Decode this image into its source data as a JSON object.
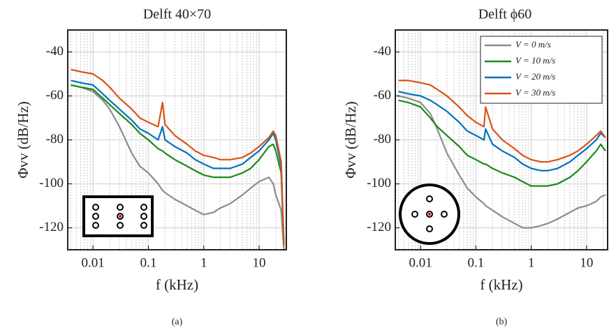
{
  "chart_data": [
    {
      "type": "line",
      "title": "Delft 40×70",
      "caption": "(a)",
      "x_label": "f (kHz)",
      "y_label": "Φvv (dB/Hz)",
      "x_scale": "log",
      "grid": true,
      "minor_grid": true,
      "xlim": [
        0.0035,
        31
      ],
      "ylim": [
        -130,
        -30
      ],
      "xticks": [
        0.01,
        0.1,
        1,
        10
      ],
      "yticks": [
        -40,
        -60,
        -80,
        -100,
        -120
      ],
      "x": [
        0.004,
        0.006,
        0.01,
        0.015,
        0.02,
        0.03,
        0.05,
        0.07,
        0.1,
        0.15,
        0.18,
        0.2,
        0.3,
        0.5,
        0.7,
        1,
        1.5,
        2,
        3,
        5,
        7,
        10,
        15,
        18,
        20,
        25,
        28
      ],
      "series": [
        {
          "name": "V = 0 m/s",
          "color": "#8c8c8c",
          "values": [
            -55,
            -56,
            -58,
            -62,
            -66,
            -74,
            -86,
            -92,
            -95,
            -100,
            -103,
            -104,
            -107,
            -110,
            -112,
            -114,
            -113,
            -111,
            -109,
            -105,
            -102,
            -99,
            -97,
            -100,
            -105,
            -112,
            -130
          ]
        },
        {
          "name": "V = 10 m/s",
          "color": "#1a8a1a",
          "values": [
            -55,
            -56,
            -57,
            -61,
            -64,
            -68,
            -73,
            -77,
            -80,
            -84,
            -85,
            -86,
            -89,
            -92,
            -94,
            -96,
            -97,
            -97,
            -97,
            -95,
            -93,
            -89,
            -83,
            -82,
            -85,
            -95,
            -128
          ]
        },
        {
          "name": "V = 20 m/s",
          "color": "#0072bd",
          "values": [
            -53,
            -54,
            -55,
            -59,
            -62,
            -66,
            -71,
            -75,
            -77,
            -80,
            -74,
            -80,
            -83,
            -86,
            -89,
            -91,
            -93,
            -93,
            -93,
            -91,
            -88,
            -85,
            -80,
            -77,
            -80,
            -92,
            -128
          ]
        },
        {
          "name": "V = 30 m/s",
          "color": "#d95319",
          "values": [
            -48,
            -49,
            -50,
            -53,
            -56,
            -61,
            -66,
            -70,
            -72,
            -74,
            -63,
            -73,
            -78,
            -82,
            -85,
            -87,
            -88,
            -89,
            -89,
            -88,
            -86,
            -83,
            -79,
            -76,
            -78,
            -90,
            -128
          ]
        }
      ]
    },
    {
      "type": "line",
      "title": "Delft ϕ60",
      "caption": "(b)",
      "x_label": "f (kHz)",
      "y_label": "Φvv (dB/Hz)",
      "x_scale": "log",
      "grid": true,
      "minor_grid": true,
      "legend": "upper right",
      "xlim": [
        0.0035,
        24
      ],
      "ylim": [
        -130,
        -30
      ],
      "xticks": [
        0.01,
        0.1,
        1,
        10
      ],
      "yticks": [
        -40,
        -60,
        -80,
        -100,
        -120
      ],
      "x": [
        0.004,
        0.006,
        0.01,
        0.015,
        0.02,
        0.03,
        0.05,
        0.07,
        0.1,
        0.14,
        0.15,
        0.2,
        0.3,
        0.5,
        0.7,
        1,
        1.5,
        2,
        3,
        5,
        7,
        10,
        15,
        18,
        22
      ],
      "series": [
        {
          "name": "V = 0 m/s",
          "color": "#8c8c8c",
          "values": [
            -60,
            -61,
            -63,
            -68,
            -75,
            -86,
            -96,
            -102,
            -106,
            -109,
            -110,
            -112,
            -115,
            -118,
            -120,
            -120,
            -119,
            -118,
            -116,
            -113,
            -111,
            -110,
            -108,
            -106,
            -105
          ]
        },
        {
          "name": "V = 10 m/s",
          "color": "#1a8a1a",
          "values": [
            -62,
            -63,
            -65,
            -70,
            -74,
            -78,
            -83,
            -87,
            -89,
            -91,
            -91,
            -93,
            -95,
            -97,
            -99,
            -101,
            -101,
            -101,
            -100,
            -97,
            -94,
            -90,
            -85,
            -82,
            -85
          ]
        },
        {
          "name": "V = 20 m/s",
          "color": "#0072bd",
          "values": [
            -58,
            -59,
            -60,
            -62,
            -64,
            -67,
            -72,
            -76,
            -78,
            -80,
            -75,
            -82,
            -85,
            -88,
            -91,
            -93,
            -94,
            -94,
            -93,
            -90,
            -87,
            -84,
            -80,
            -77,
            -79
          ]
        },
        {
          "name": "V = 30 m/s",
          "color": "#d95319",
          "values": [
            -53,
            -53,
            -54,
            -55,
            -57,
            -60,
            -65,
            -69,
            -72,
            -74,
            -65,
            -75,
            -80,
            -84,
            -87,
            -89,
            -90,
            -90,
            -89,
            -87,
            -85,
            -82,
            -78,
            -76,
            -79
          ]
        }
      ]
    }
  ]
}
